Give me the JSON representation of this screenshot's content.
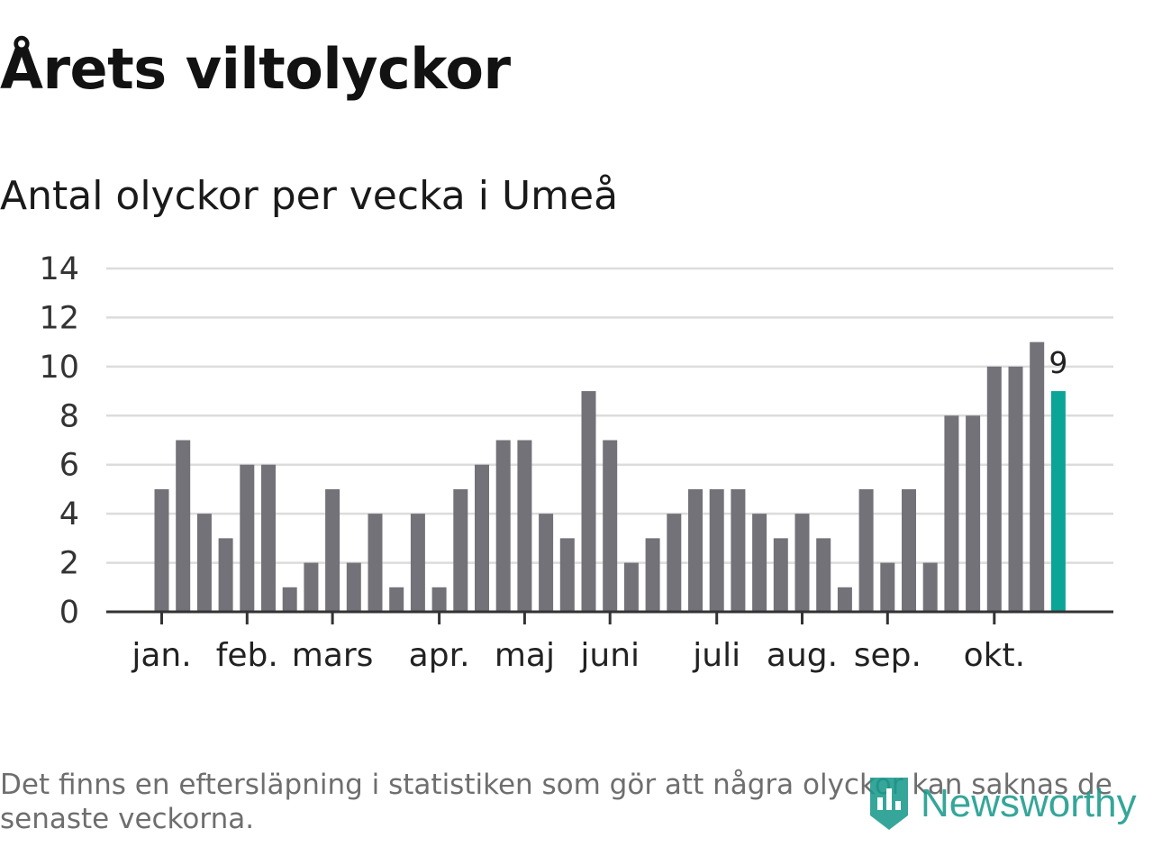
{
  "title": "Årets viltolyckor",
  "subtitle": "Antal olyckor per vecka i Umeå",
  "footnote": "Det finns en eftersläpning i statistiken som gör att några olyckor kan saknas de senaste veckorna.",
  "logo": {
    "text": "Newsworthy",
    "icon": "bar-chart-logo-icon",
    "color": "#1a9a8c"
  },
  "colors": {
    "bar": "#737278",
    "highlight": "#0aa596",
    "grid": "#dcdcdc",
    "axis": "#333333"
  },
  "chart_data": {
    "type": "bar",
    "title": "Antal olyckor per vecka i Umeå",
    "xlabel": "",
    "ylabel": "",
    "ylim": [
      0,
      14
    ],
    "yticks": [
      "0",
      "2",
      "4",
      "6",
      "8",
      "10",
      "12",
      "14"
    ],
    "grid": true,
    "month_ticks": [
      {
        "label": "jan.",
        "week": 1
      },
      {
        "label": "feb.",
        "week": 5
      },
      {
        "label": "mars",
        "week": 9
      },
      {
        "label": "apr.",
        "week": 14
      },
      {
        "label": "maj",
        "week": 18
      },
      {
        "label": "juni",
        "week": 22
      },
      {
        "label": "juli",
        "week": 27
      },
      {
        "label": "aug.",
        "week": 31
      },
      {
        "label": "sep.",
        "week": 35
      },
      {
        "label": "okt.",
        "week": 40
      }
    ],
    "values": [
      5,
      7,
      4,
      3,
      6,
      6,
      1,
      2,
      5,
      2,
      4,
      1,
      4,
      1,
      5,
      6,
      7,
      7,
      4,
      3,
      9,
      7,
      2,
      3,
      4,
      5,
      5,
      5,
      4,
      3,
      4,
      3,
      1,
      5,
      2,
      5,
      2,
      8,
      8,
      10,
      10,
      11,
      9
    ],
    "highlight_index": 42,
    "highlight_label": "9"
  }
}
